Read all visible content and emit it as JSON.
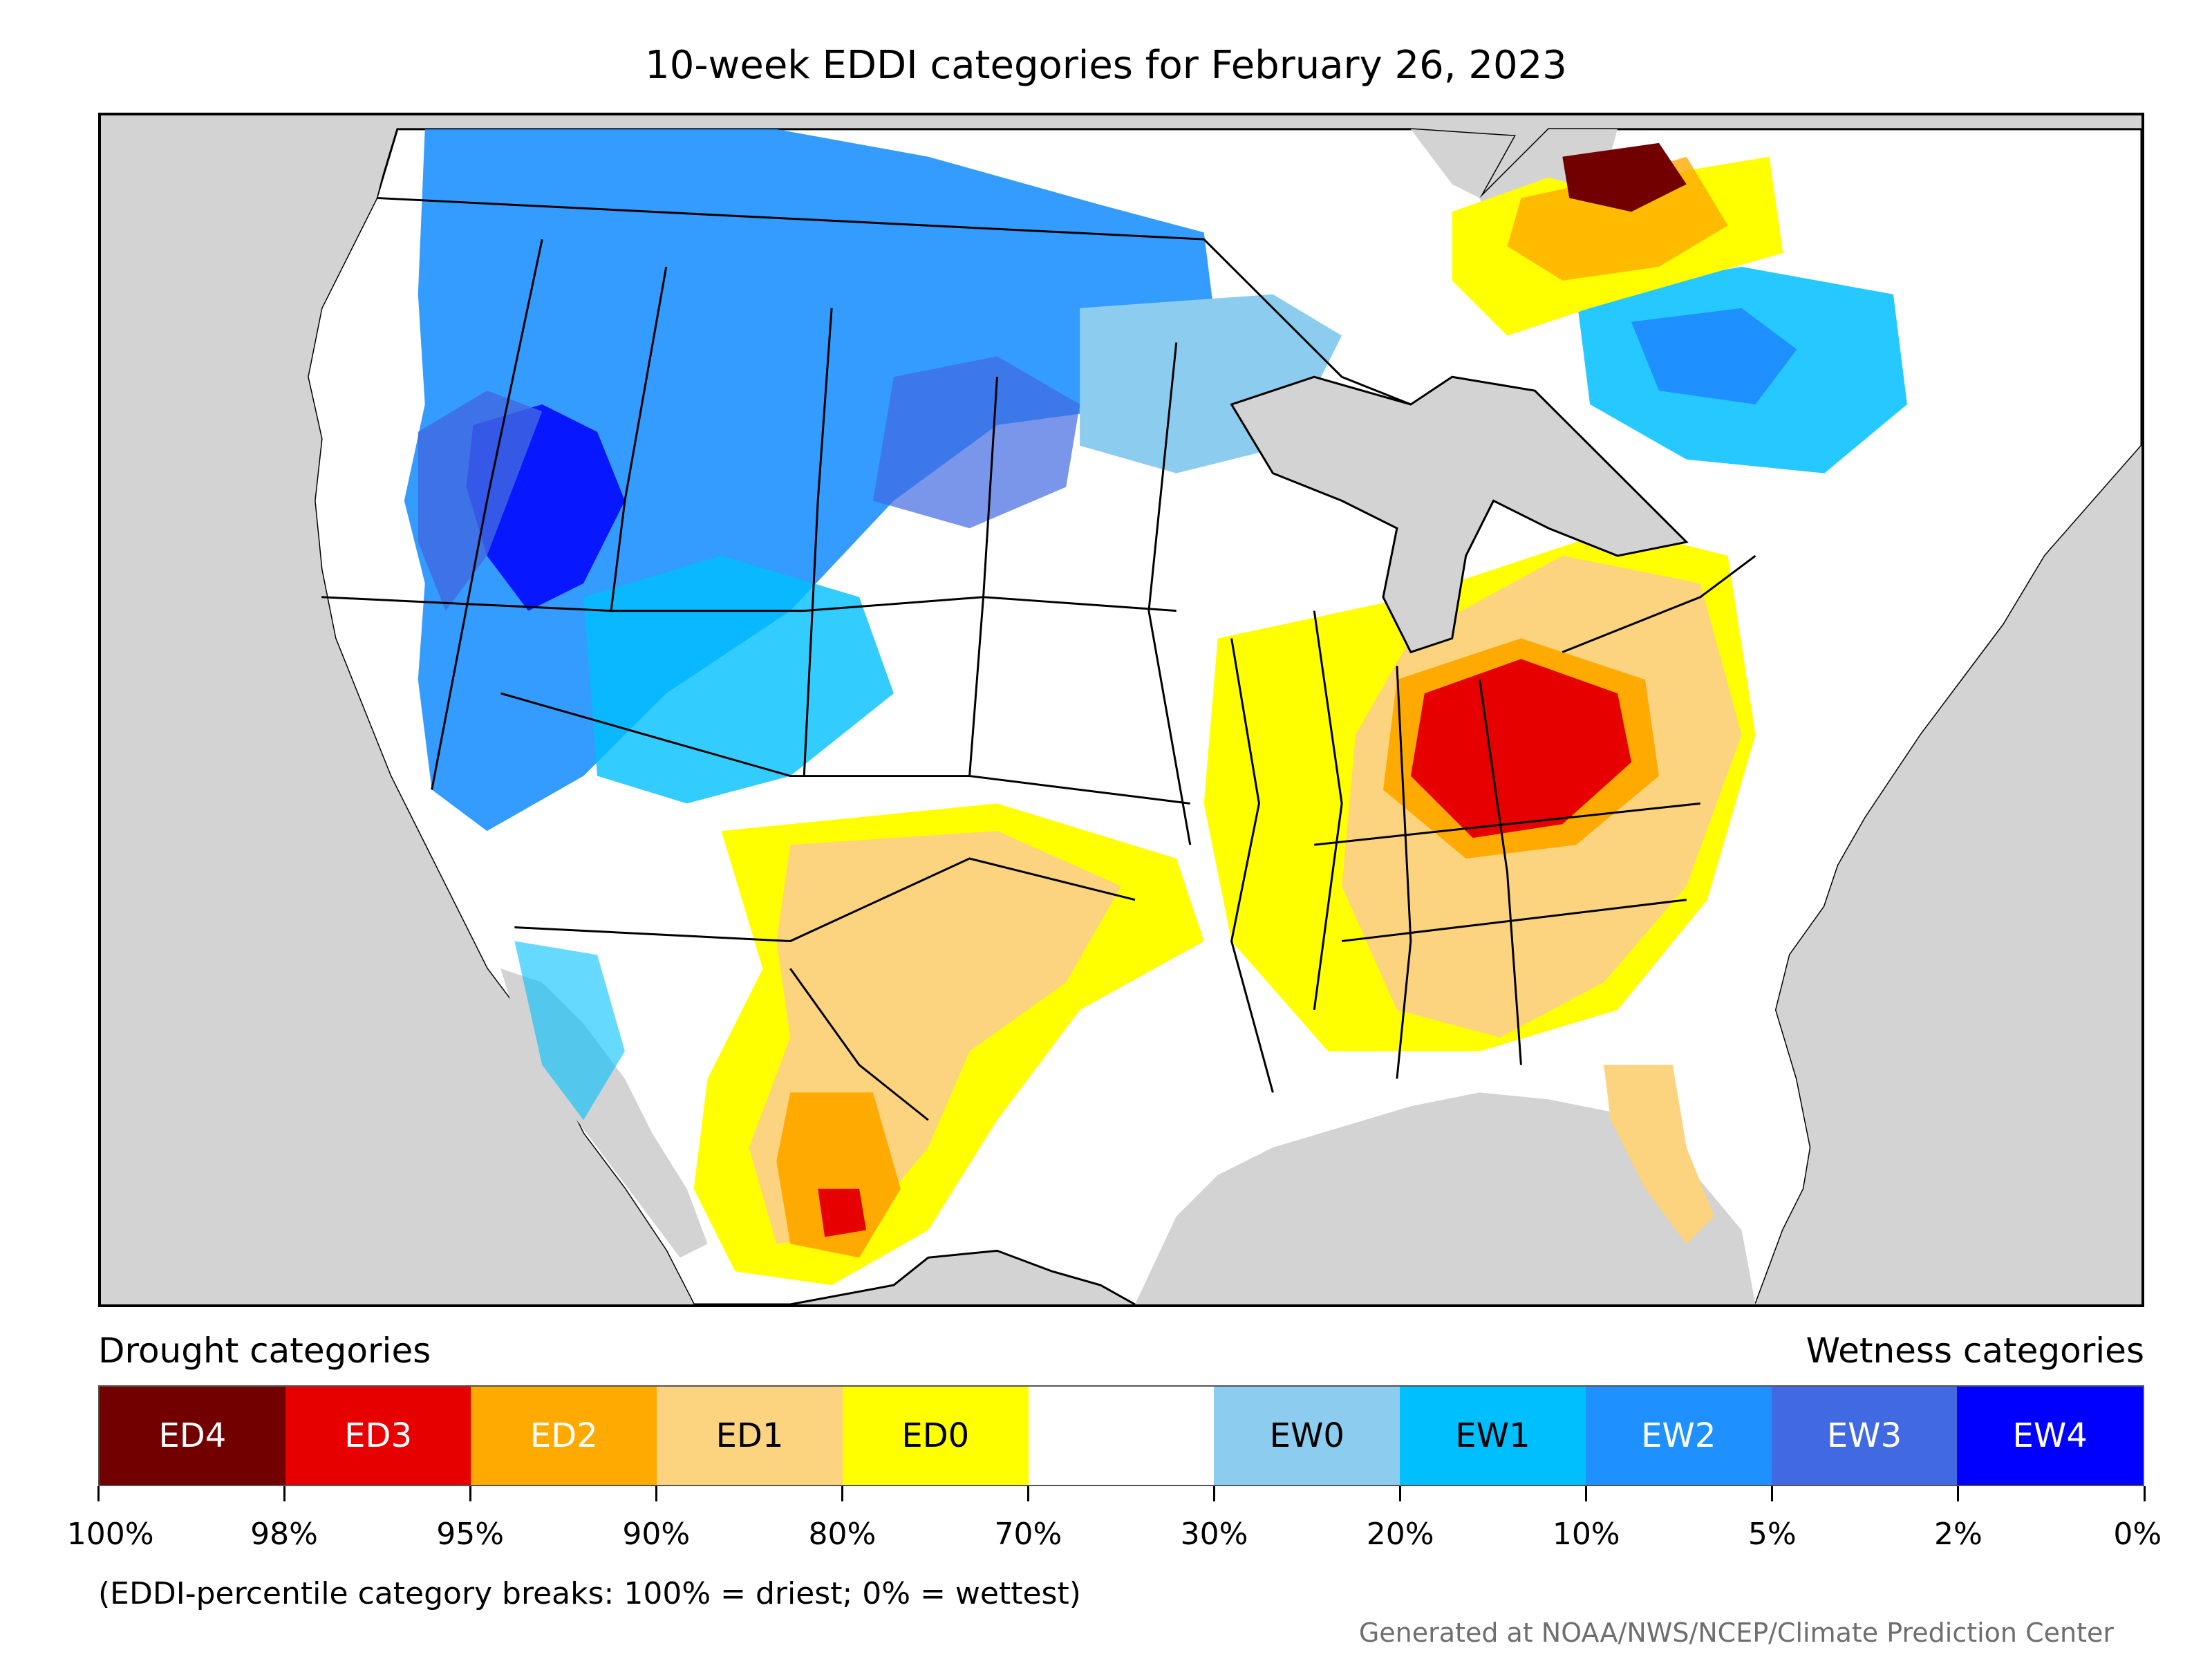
{
  "title": "10-week EDDI categories for February 26, 2023",
  "legend": {
    "drought_heading": "Drought categories",
    "wetness_heading": "Wetness categories",
    "categories": [
      {
        "label": "ED4",
        "color": "#730000",
        "text_color": "#ffffff"
      },
      {
        "label": "ED3",
        "color": "#e60000",
        "text_color": "#ffffff"
      },
      {
        "label": "ED2",
        "color": "#ffaa00",
        "text_color": "#ffffff"
      },
      {
        "label": "ED1",
        "color": "#fcd37f",
        "text_color": "#000000"
      },
      {
        "label": "ED0",
        "color": "#ffff00",
        "text_color": "#000000"
      },
      {
        "label": "",
        "color": "#ffffff",
        "text_color": "#000000"
      },
      {
        "label": "EW0",
        "color": "#8ccdef",
        "text_color": "#000000"
      },
      {
        "label": "EW1",
        "color": "#00bfff",
        "text_color": "#000000"
      },
      {
        "label": "EW2",
        "color": "#1e90ff",
        "text_color": "#ffffff"
      },
      {
        "label": "EW3",
        "color": "#4169e1",
        "text_color": "#ffffff"
      },
      {
        "label": "EW4",
        "color": "#0000ff",
        "text_color": "#ffffff"
      }
    ],
    "ticks": [
      "100%",
      "98%",
      "95%",
      "90%",
      "80%",
      "70%",
      "30%",
      "20%",
      "10%",
      "5%",
      "2%",
      "0%"
    ]
  },
  "footnote": "(EDDI-percentile category breaks: 100% = driest; 0% = wettest)",
  "credit": "Generated at NOAA/NWS/NCEP/Climate Prediction Center",
  "map": {
    "background_color": "#d3d3d3",
    "land_color": "#ffffff",
    "regions": [
      {
        "name": "pacific-northwest-wet",
        "category": "EW2"
      },
      {
        "name": "great-basin-wet",
        "category": "EW4"
      },
      {
        "name": "northern-plains-wet",
        "category": "EW2"
      },
      {
        "name": "quebec-wet",
        "category": "EW1"
      },
      {
        "name": "ohio-valley-dry",
        "category": "ED3"
      },
      {
        "name": "southeast-dry",
        "category": "ED1"
      },
      {
        "name": "texas-mexico-dry",
        "category": "ED1"
      },
      {
        "name": "ontario-quebec-dry",
        "category": "ED2"
      },
      {
        "name": "hudson-bay-dry",
        "category": "ED4"
      }
    ]
  }
}
